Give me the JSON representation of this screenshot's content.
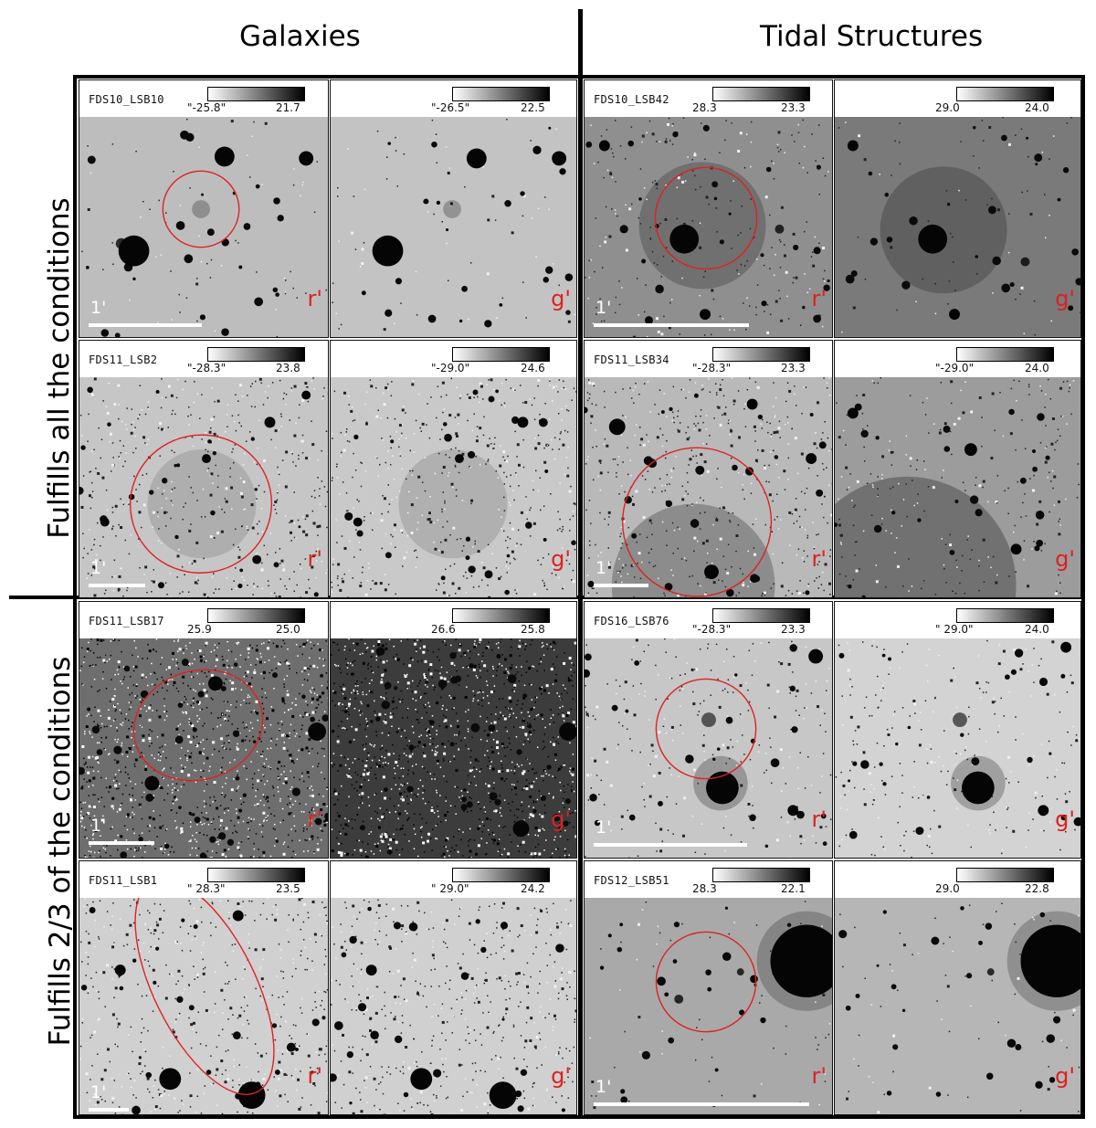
{
  "columns": {
    "left": "Galaxies",
    "right": "Tidal Structures"
  },
  "rows": {
    "top": "Fulfills all the conditions",
    "bottom": "Fulfills 2/3 of the conditions"
  },
  "panels": [
    {
      "label": "FDS10_LSB10",
      "band": "r'",
      "scale": "1'",
      "cmin": "\"-25.8\"",
      "cmax": "21.7",
      "bg": "#bdbdbd",
      "noise": "low"
    },
    {
      "label": "",
      "band": "g'",
      "scale": "",
      "cmin": "\"-26.5\"",
      "cmax": "22.5",
      "bg": "#c3c3c3",
      "noise": "low"
    },
    {
      "label": "FDS10_LSB42",
      "band": "r'",
      "scale": "1'",
      "cmin": "28.3",
      "cmax": "23.3",
      "bg": "#8f8f8f",
      "noise": "mid"
    },
    {
      "label": "",
      "band": "g'",
      "scale": "",
      "cmin": "29.0",
      "cmax": "24.0",
      "bg": "#7a7a7a",
      "noise": "low"
    },
    {
      "label": "FDS11_LSB2",
      "band": "r'",
      "scale": "1'",
      "cmin": "\"-28.3\"",
      "cmax": "23.8",
      "bg": "#c6c6c6",
      "noise": "high"
    },
    {
      "label": "",
      "band": "g'",
      "scale": "",
      "cmin": "\"-29.0\"",
      "cmax": "24.6",
      "bg": "#c9c9c9",
      "noise": "high"
    },
    {
      "label": "FDS11_LSB34",
      "band": "r'",
      "scale": "1'",
      "cmin": "\"-28.3\"",
      "cmax": "23.3",
      "bg": "#b9b9b9",
      "noise": "high"
    },
    {
      "label": "",
      "band": "g'",
      "scale": "",
      "cmin": "\"-29.0\"",
      "cmax": "24.0",
      "bg": "#9c9c9c",
      "noise": "mid"
    },
    {
      "label": "FDS11_LSB17",
      "band": "r'",
      "scale": "1'",
      "cmin": "25.9",
      "cmax": "25.0",
      "bg": "#6e6e6e",
      "noise": "extreme"
    },
    {
      "label": "",
      "band": "g'",
      "scale": "",
      "cmin": "26.6",
      "cmax": "25.8",
      "bg": "#3c3c3c",
      "noise": "extreme"
    },
    {
      "label": "FDS16_LSB76",
      "band": "r'",
      "scale": "1'",
      "cmin": "\"-28.3\"",
      "cmax": "23.3",
      "bg": "#c7c7c7",
      "noise": "mid"
    },
    {
      "label": "",
      "band": "g'",
      "scale": "",
      "cmin": "\" 29.0\"",
      "cmax": "24.0",
      "bg": "#d3d3d3",
      "noise": "mid"
    },
    {
      "label": "FDS11_LSB1",
      "band": "r'",
      "scale": "1'",
      "cmin": "\" 28.3\"",
      "cmax": "23.5",
      "bg": "#d0d0d0",
      "noise": "high"
    },
    {
      "label": "",
      "band": "g'",
      "scale": "",
      "cmin": "\" 29.0\"",
      "cmax": "24.2",
      "bg": "#d0d0d0",
      "noise": "high"
    },
    {
      "label": "FDS12_LSB51",
      "band": "r'",
      "scale": "1'",
      "cmin": "28.3",
      "cmax": "22.1",
      "bg": "#a9a9a9",
      "noise": "low"
    },
    {
      "label": "",
      "band": "g'",
      "scale": "",
      "cmin": "29.0",
      "cmax": "22.8",
      "bg": "#b6b6b6",
      "noise": "low"
    }
  ],
  "colors": {
    "ellipse": "#e02020",
    "band": "#e02020",
    "frame": "#000000"
  }
}
